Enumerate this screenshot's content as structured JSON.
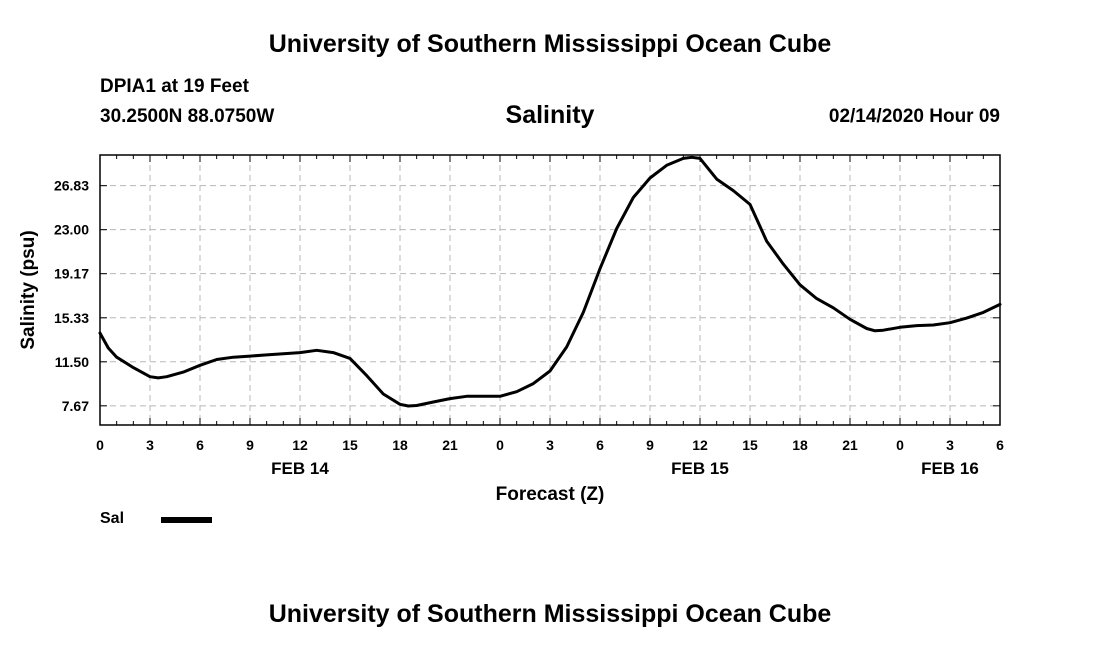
{
  "header": {
    "top_title": "University of Southern Mississippi Ocean Cube",
    "station": "DPIA1 at 19 Feet",
    "coords": "30.2500N 88.0750W",
    "chart_title": "Salinity",
    "datetime": "02/14/2020 Hour 09",
    "bottom_title": "University of Southern Mississippi Ocean Cube"
  },
  "legend": {
    "label": "Sal",
    "color": "#000000"
  },
  "chart_data": {
    "type": "line",
    "title": "Salinity",
    "xlabel": "Forecast (Z)",
    "ylabel": "Salinity (psu)",
    "xlim": [
      0,
      54
    ],
    "ylim": [
      6,
      29.5
    ],
    "grid": true,
    "x_ticks": [
      {
        "value": 0,
        "label": "0"
      },
      {
        "value": 3,
        "label": "3"
      },
      {
        "value": 6,
        "label": "6"
      },
      {
        "value": 9,
        "label": "9"
      },
      {
        "value": 12,
        "label": "12"
      },
      {
        "value": 15,
        "label": "15"
      },
      {
        "value": 18,
        "label": "18"
      },
      {
        "value": 21,
        "label": "21"
      },
      {
        "value": 24,
        "label": "0"
      },
      {
        "value": 27,
        "label": "3"
      },
      {
        "value": 30,
        "label": "6"
      },
      {
        "value": 33,
        "label": "9"
      },
      {
        "value": 36,
        "label": "12"
      },
      {
        "value": 39,
        "label": "15"
      },
      {
        "value": 42,
        "label": "18"
      },
      {
        "value": 45,
        "label": "21"
      },
      {
        "value": 48,
        "label": "0"
      },
      {
        "value": 51,
        "label": "3"
      },
      {
        "value": 54,
        "label": "6"
      }
    ],
    "date_labels": [
      {
        "value": 12,
        "label": "FEB 14"
      },
      {
        "value": 36,
        "label": "FEB 15"
      },
      {
        "value": 51,
        "label": "FEB 16"
      }
    ],
    "y_ticks": [
      7.67,
      11.5,
      15.33,
      19.17,
      23.0,
      26.83
    ],
    "y_tick_labels": [
      "7.67",
      "11.50",
      "15.33",
      "19.17",
      "23.00",
      "26.83"
    ],
    "series": [
      {
        "name": "Sal",
        "x": [
          0,
          0.5,
          1,
          2,
          3,
          3.5,
          4,
          5,
          6,
          7,
          8,
          9,
          10,
          11,
          12,
          13,
          14,
          15,
          16,
          17,
          18,
          18.5,
          19,
          20,
          21,
          22,
          23,
          24,
          25,
          26,
          27,
          28,
          29,
          30,
          31,
          32,
          33,
          34,
          35,
          35.5,
          36,
          37,
          38,
          39,
          40,
          41,
          42,
          43,
          44,
          45,
          46,
          46.5,
          47,
          48,
          49,
          50,
          51,
          52,
          53,
          54
        ],
        "values": [
          14.0,
          12.7,
          11.9,
          11.0,
          10.2,
          10.1,
          10.2,
          10.6,
          11.2,
          11.7,
          11.9,
          12.0,
          12.1,
          12.2,
          12.3,
          12.5,
          12.3,
          11.8,
          10.3,
          8.7,
          7.8,
          7.65,
          7.7,
          8.0,
          8.3,
          8.5,
          8.5,
          8.5,
          8.9,
          9.6,
          10.7,
          12.8,
          15.8,
          19.6,
          23.1,
          25.8,
          27.5,
          28.6,
          29.2,
          29.3,
          29.2,
          27.4,
          26.4,
          25.2,
          22.0,
          20.0,
          18.2,
          17.0,
          16.2,
          15.2,
          14.4,
          14.2,
          14.25,
          14.5,
          14.65,
          14.7,
          14.9,
          15.3,
          15.8,
          16.5
        ]
      }
    ]
  }
}
